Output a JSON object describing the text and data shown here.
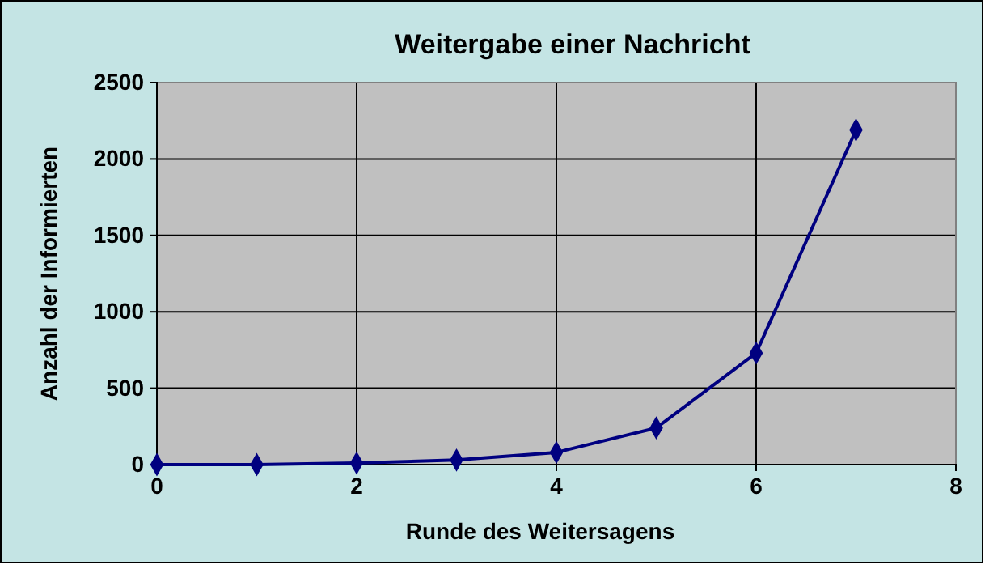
{
  "chart_data": {
    "type": "line",
    "title": "Weitergabe einer Nachricht",
    "xlabel": "Runde des Weitersagens",
    "ylabel": "Anzahl der Informierten",
    "x": [
      0,
      1,
      2,
      3,
      4,
      5,
      6,
      7
    ],
    "series": [
      {
        "color": "#000080",
        "values": [
          0,
          0,
          10,
          30,
          80,
          240,
          730,
          2190
        ]
      }
    ],
    "xlim": [
      0,
      8
    ],
    "xticks": [
      0,
      2,
      4,
      6,
      8
    ],
    "ylim": [
      0,
      2500
    ],
    "yticks": [
      0,
      500,
      1000,
      1500,
      2000,
      2500
    ],
    "grid": true,
    "marker": "diamond",
    "line_style": "solid"
  }
}
